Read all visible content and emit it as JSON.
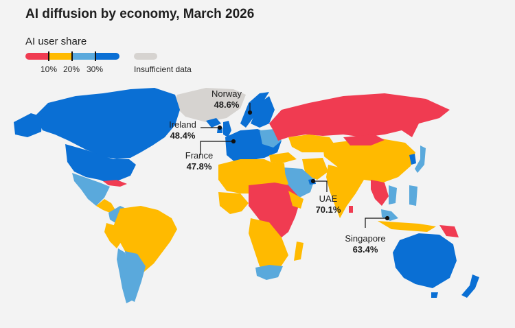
{
  "title": "AI diffusion by economy, March 2026",
  "legend": {
    "title": "AI user share",
    "ticks": [
      "10%",
      "20%",
      "30%"
    ],
    "nodata": "Insufficient data",
    "colors": {
      "low": "#f03b51",
      "mid": "#ffba00",
      "high": "#5aa9dc",
      "top": "#0a6fd4",
      "nodata": "#d6d3d0"
    }
  },
  "callouts": [
    {
      "country": "Norway",
      "value": "48.6%"
    },
    {
      "country": "Ireland",
      "value": "48.4%"
    },
    {
      "country": "France",
      "value": "47.8%"
    },
    {
      "country": "UAE",
      "value": "70.1%"
    },
    {
      "country": "Singapore",
      "value": "63.4%"
    }
  ]
}
